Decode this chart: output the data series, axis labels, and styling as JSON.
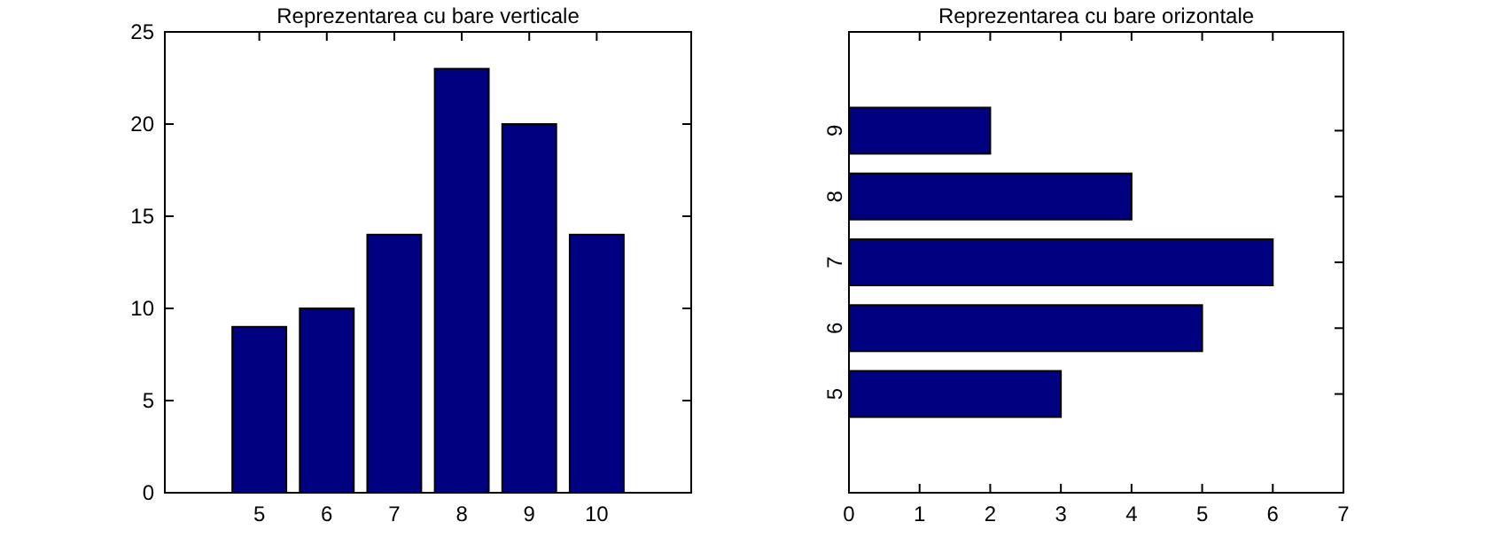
{
  "chart_data": [
    {
      "type": "bar",
      "title": "Reprezentarea cu bare verticale",
      "categories": [
        "5",
        "6",
        "7",
        "8",
        "9",
        "10"
      ],
      "values": [
        9,
        10,
        14,
        23,
        20,
        14
      ],
      "color": "#000080",
      "ylim": [
        0,
        25
      ],
      "yticks": [
        0,
        5,
        10,
        15,
        20,
        25
      ]
    },
    {
      "type": "bar",
      "orientation": "horizontal",
      "title": "Reprezentarea cu bare orizontale",
      "categories": [
        "9",
        "8",
        "7",
        "6",
        "5"
      ],
      "values": [
        2,
        4,
        6,
        5,
        3
      ],
      "color": "#000080",
      "xlim": [
        0,
        7
      ],
      "xticks": [
        0,
        1,
        2,
        3,
        4,
        5,
        6,
        7
      ]
    }
  ]
}
